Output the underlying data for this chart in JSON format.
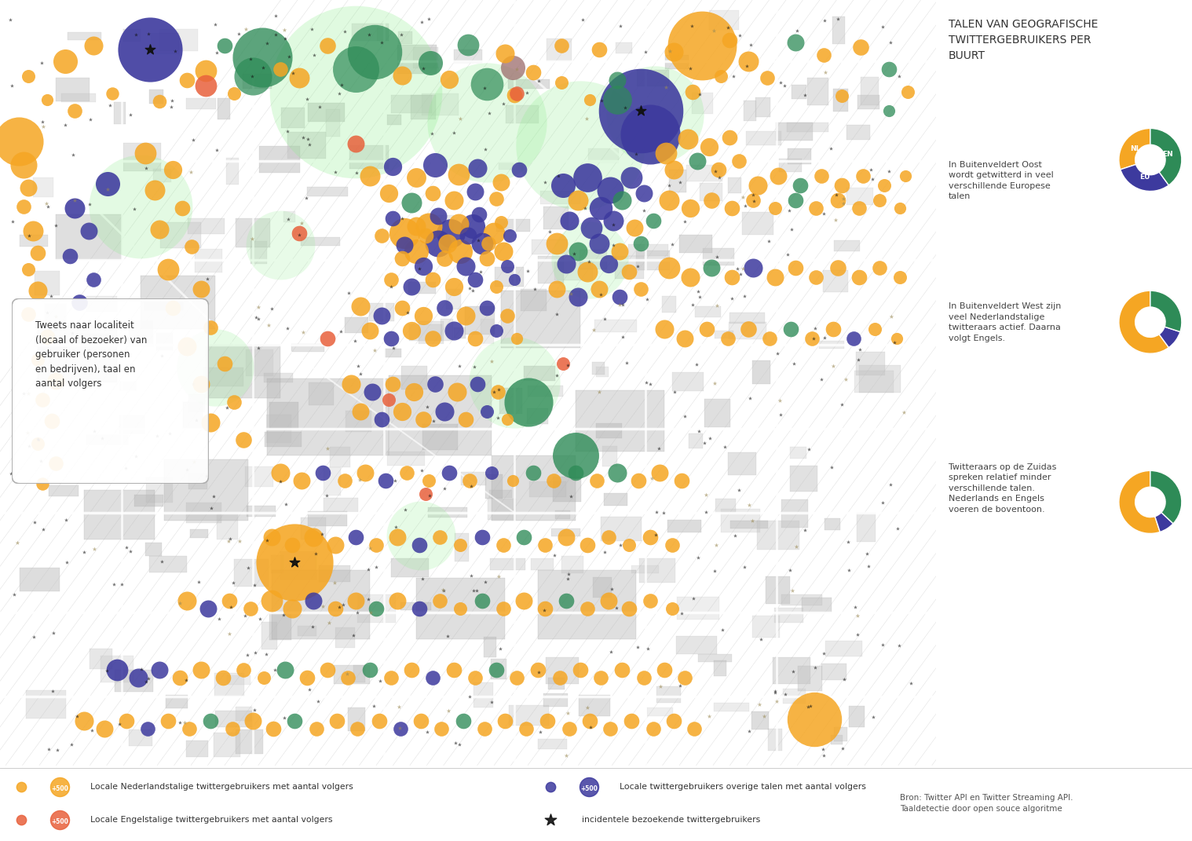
{
  "bg_color": "#ffffff",
  "map_bg": "#f7f7f4",
  "legend_title": "TALEN VAN GEOGRAFISCHE\nTWITTERGEBRUIKERS PER\nBUURT",
  "legend_text1": "In Buitenveldert Oost\nwordt getwitterd in veel\nverschillende Europese\ntalen",
  "legend_text2": "In Buitenveldert West zijn\nveel Nederlandstalige\ntwitteraars actief. Daarna\nvolgt Engels.",
  "legend_text3": "Twitteraars op de Zuidas\nspreken relatief minder\nverschillende talen.\nNederlands en Engels\nvoeren de boventoon.",
  "callout_text": "Tweets naar localiteit\n(locaal of bezoeker) van\ngebruiker (personen\nen bedrijven), taal en\naantal volgers",
  "label_nl": "Locale Nederlandstalige twittergebruikers met aantal volgers",
  "label_en_lang": "Locale Engelstalige twittergebruikers met aantal volgers",
  "label_other": "Locale twittergebruikers overige talen met aantal volgers",
  "label_visitor": "incidentele bezoekende twittergebruikers",
  "source": "Bron: Twitter API en Twitter Streaming API.\nTaaldetectie door open souce algoritme",
  "color_nl": "#F5A623",
  "color_en": "#E8613C",
  "color_other": "#3D3A9E",
  "color_green": "#2E8B57",
  "color_lgreen": "#90EE90",
  "pie1_sizes": [
    0.3,
    0.3,
    0.4
  ],
  "pie1_colors": [
    "#F5A623",
    "#3D3A9E",
    "#2E8B57"
  ],
  "pie1_labels": [
    "NL",
    "EU",
    "EN"
  ],
  "pie2_sizes": [
    0.6,
    0.1,
    0.3
  ],
  "pie2_colors": [
    "#F5A623",
    "#3D3A9E",
    "#2E8B57"
  ],
  "pie3_sizes": [
    0.55,
    0.08,
    0.37
  ],
  "pie3_colors": [
    "#F5A623",
    "#3D3A9E",
    "#2E8B57"
  ]
}
